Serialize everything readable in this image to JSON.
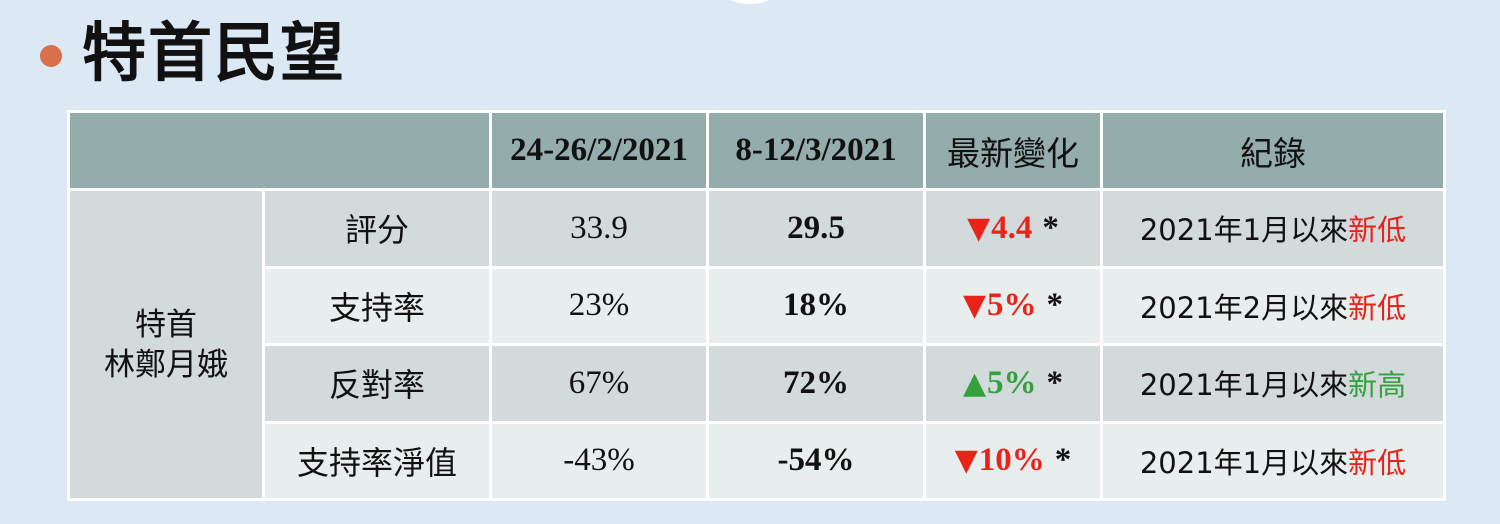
{
  "title": "特首民望",
  "colors": {
    "bullet": "#d96f4b",
    "header_bg": "#94acac",
    "down": "#e8241a",
    "up": "#34a13e"
  },
  "table": {
    "headers": [
      "",
      "24-26/2/2021",
      "8-12/3/2021",
      "最新變化",
      "紀錄"
    ],
    "person_line1": "特首",
    "person_line2": "林鄭月娥",
    "rows": [
      {
        "metric": "評分",
        "prev": "33.9",
        "latest": "29.5",
        "arrow": "▼",
        "direction": "down",
        "change": "4.4",
        "sig": "*",
        "record_prefix": "2021年1月以來",
        "record_suffix": "新低",
        "record_type": "low"
      },
      {
        "metric": "支持率",
        "prev": "23%",
        "latest": "18%",
        "arrow": "▼",
        "direction": "down",
        "change": "5%",
        "sig": "*",
        "record_prefix": "2021年2月以來",
        "record_suffix": "新低",
        "record_type": "low"
      },
      {
        "metric": "反對率",
        "prev": "67%",
        "latest": "72%",
        "arrow": "▲",
        "direction": "up",
        "change": "5%",
        "sig": "*",
        "record_prefix": "2021年1月以來",
        "record_suffix": "新高",
        "record_type": "high"
      },
      {
        "metric": "支持率淨值",
        "prev": "-43%",
        "latest": "-54%",
        "arrow": "▼",
        "direction": "down",
        "change": "10%",
        "sig": "*",
        "record_prefix": "2021年1月以來",
        "record_suffix": "新低",
        "record_type": "low"
      }
    ]
  }
}
